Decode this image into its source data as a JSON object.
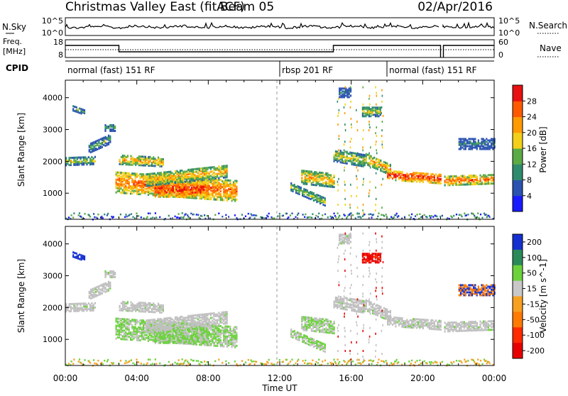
{
  "header": {
    "title": "Christmas Valley East (fitACF)",
    "beam": "Beam 05",
    "date": "02/Apr/2016"
  },
  "nsky_panel": {
    "left_label": "N.Sky",
    "left_ticks": [
      "10^5",
      "10^0"
    ],
    "right_ticks": [
      "10^5",
      "10^0"
    ],
    "right_label": "N.Search"
  },
  "freq_panel": {
    "left_label_line1": "Freq.",
    "left_label_line2": "[MHz]",
    "left_ticks": [
      "18",
      "8"
    ],
    "right_ticks": [
      "60",
      "0"
    ],
    "right_label": "Nave"
  },
  "cpid": {
    "label": "CPID",
    "segments": [
      {
        "text": "normal (fast) 151 RF",
        "start_hour": 0
      },
      {
        "text": "rbsp 201 RF",
        "start_hour": 12
      },
      {
        "text": "normal (fast) 151 RF",
        "start_hour": 18
      }
    ]
  },
  "colors": {
    "power": [
      "#1a1aff",
      "#2a52b0",
      "#2e8b6e",
      "#5aaa46",
      "#f2d01a",
      "#ff9a00",
      "#ff5a00",
      "#e81010"
    ],
    "velocity": [
      "#1530d0",
      "#2a8a5a",
      "#6cd23c",
      "#c8c8c8",
      "#f7a020",
      "#ff7a00",
      "#ff2a00",
      "#e80000"
    ],
    "ground_scatter": "#c0c0c0"
  },
  "chart_data": [
    {
      "type": "heatmap",
      "name": "power",
      "ylabel": "Slant Range [km]",
      "y_ticks": [
        1000,
        2000,
        3000,
        4000
      ],
      "ylim": [
        180,
        4550
      ],
      "xlim_hours": [
        0,
        24
      ],
      "colorbar": {
        "label": "Power [dB]",
        "ticks": [
          4,
          8,
          12,
          16,
          20,
          24,
          28
        ],
        "range": [
          0,
          32
        ]
      }
    },
    {
      "type": "heatmap",
      "name": "velocity",
      "ylabel": "Slant Range [km]",
      "y_ticks": [
        1000,
        2000,
        3000,
        4000
      ],
      "ylim": [
        180,
        4550
      ],
      "xlim_hours": [
        0,
        24
      ],
      "colorbar": {
        "label": "Velocity [m s^-1]",
        "ticks": [
          200,
          100,
          50,
          15,
          -15,
          -50,
          -100,
          -200
        ]
      }
    }
  ],
  "x_axis": {
    "label": "Time UT",
    "ticks": [
      "00:00",
      "04:00",
      "08:00",
      "12:00",
      "16:00",
      "20:00",
      "00:00"
    ]
  }
}
